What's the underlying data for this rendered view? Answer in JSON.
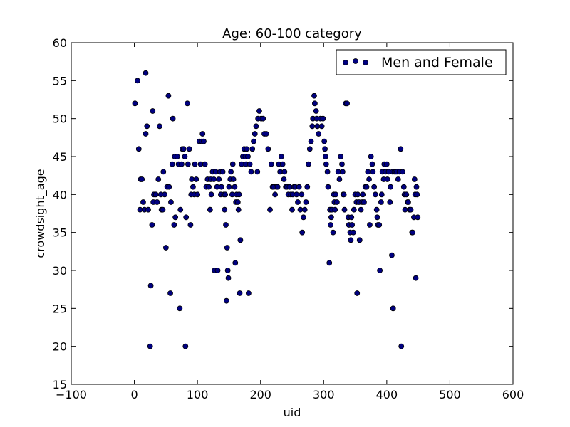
{
  "chart_data": {
    "type": "scatter",
    "title": "Age: 60-100 category",
    "xlabel": "uid",
    "ylabel": "crowdsight_age",
    "xlim": [
      -100,
      600
    ],
    "ylim": [
      15,
      60
    ],
    "xticks": [
      -100,
      0,
      100,
      200,
      300,
      400,
      500,
      600
    ],
    "yticks": [
      15,
      20,
      25,
      30,
      35,
      40,
      45,
      50,
      55,
      60
    ],
    "xtick_labels": [
      "−100",
      "0",
      "100",
      "200",
      "300",
      "400",
      "500",
      "600"
    ],
    "ytick_labels": [
      "15",
      "20",
      "25",
      "30",
      "35",
      "40",
      "45",
      "50",
      "55",
      "60"
    ],
    "grid": false,
    "legend_position": "top-right",
    "marker_color": "#000080",
    "series": [
      {
        "name": "Men and Female",
        "points": [
          [
            1,
            52
          ],
          [
            5,
            55
          ],
          [
            7,
            46
          ],
          [
            9,
            38
          ],
          [
            10,
            42
          ],
          [
            12,
            42
          ],
          [
            14,
            39
          ],
          [
            16,
            38
          ],
          [
            18,
            56
          ],
          [
            18,
            48
          ],
          [
            20,
            49
          ],
          [
            22,
            38
          ],
          [
            25,
            20
          ],
          [
            26,
            28
          ],
          [
            28,
            36
          ],
          [
            29,
            51
          ],
          [
            30,
            39
          ],
          [
            31,
            40
          ],
          [
            34,
            40
          ],
          [
            36,
            39
          ],
          [
            38,
            42
          ],
          [
            40,
            49
          ],
          [
            42,
            40
          ],
          [
            43,
            38
          ],
          [
            45,
            38
          ],
          [
            46,
            43
          ],
          [
            48,
            40
          ],
          [
            50,
            33
          ],
          [
            52,
            41
          ],
          [
            54,
            53
          ],
          [
            55,
            41
          ],
          [
            57,
            27
          ],
          [
            58,
            39
          ],
          [
            60,
            44
          ],
          [
            61,
            50
          ],
          [
            63,
            36
          ],
          [
            64,
            45
          ],
          [
            65,
            37
          ],
          [
            68,
            45
          ],
          [
            70,
            44
          ],
          [
            72,
            25
          ],
          [
            73,
            38
          ],
          [
            75,
            44
          ],
          [
            76,
            46
          ],
          [
            78,
            46
          ],
          [
            80,
            45
          ],
          [
            81,
            20
          ],
          [
            82,
            37
          ],
          [
            84,
            52
          ],
          [
            85,
            44
          ],
          [
            87,
            46
          ],
          [
            89,
            36
          ],
          [
            90,
            40
          ],
          [
            91,
            42
          ],
          [
            93,
            41
          ],
          [
            95,
            40
          ],
          [
            96,
            44
          ],
          [
            98,
            42
          ],
          [
            100,
            40
          ],
          [
            103,
            47
          ],
          [
            105,
            44
          ],
          [
            107,
            47
          ],
          [
            108,
            48
          ],
          [
            110,
            47
          ],
          [
            112,
            44
          ],
          [
            114,
            41
          ],
          [
            116,
            42
          ],
          [
            118,
            41
          ],
          [
            120,
            38
          ],
          [
            121,
            42
          ],
          [
            122,
            40
          ],
          [
            124,
            43
          ],
          [
            126,
            42
          ],
          [
            127,
            30
          ],
          [
            129,
            43
          ],
          [
            131,
            41
          ],
          [
            132,
            30
          ],
          [
            134,
            42
          ],
          [
            136,
            43
          ],
          [
            137,
            40
          ],
          [
            138,
            41
          ],
          [
            140,
            43
          ],
          [
            142,
            40
          ],
          [
            143,
            38
          ],
          [
            144,
            40
          ],
          [
            145,
            36
          ],
          [
            146,
            26
          ],
          [
            147,
            33
          ],
          [
            148,
            30
          ],
          [
            149,
            29
          ],
          [
            150,
            41
          ],
          [
            152,
            42
          ],
          [
            153,
            43
          ],
          [
            155,
            40
          ],
          [
            156,
            44
          ],
          [
            157,
            42
          ],
          [
            159,
            41
          ],
          [
            160,
            31
          ],
          [
            161,
            39
          ],
          [
            162,
            40
          ],
          [
            164,
            39
          ],
          [
            165,
            38
          ],
          [
            166,
            40
          ],
          [
            167,
            27
          ],
          [
            168,
            34
          ],
          [
            170,
            44
          ],
          [
            172,
            45
          ],
          [
            174,
            46
          ],
          [
            176,
            45
          ],
          [
            177,
            44
          ],
          [
            178,
            46
          ],
          [
            180,
            45
          ],
          [
            181,
            27
          ],
          [
            183,
            44
          ],
          [
            185,
            43
          ],
          [
            187,
            46
          ],
          [
            189,
            47
          ],
          [
            191,
            48
          ],
          [
            193,
            49
          ],
          [
            195,
            43
          ],
          [
            196,
            50
          ],
          [
            198,
            51
          ],
          [
            201,
            50
          ],
          [
            204,
            50
          ],
          [
            206,
            48
          ],
          [
            209,
            48
          ],
          [
            212,
            46
          ],
          [
            215,
            38
          ],
          [
            217,
            44
          ],
          [
            219,
            41
          ],
          [
            221,
            41
          ],
          [
            223,
            40
          ],
          [
            225,
            41
          ],
          [
            227,
            41
          ],
          [
            229,
            44
          ],
          [
            231,
            43
          ],
          [
            233,
            45
          ],
          [
            235,
            44
          ],
          [
            237,
            42
          ],
          [
            238,
            43
          ],
          [
            240,
            41
          ],
          [
            242,
            41
          ],
          [
            244,
            40
          ],
          [
            246,
            41
          ],
          [
            248,
            40
          ],
          [
            250,
            38
          ],
          [
            251,
            40
          ],
          [
            253,
            41
          ],
          [
            255,
            41
          ],
          [
            257,
            40
          ],
          [
            259,
            39
          ],
          [
            261,
            41
          ],
          [
            263,
            38
          ],
          [
            265,
            40
          ],
          [
            266,
            35
          ],
          [
            268,
            37
          ],
          [
            270,
            38
          ],
          [
            272,
            39
          ],
          [
            274,
            41
          ],
          [
            276,
            44
          ],
          [
            278,
            46
          ],
          [
            280,
            47
          ],
          [
            282,
            49
          ],
          [
            283,
            50
          ],
          [
            285,
            53
          ],
          [
            286,
            52
          ],
          [
            288,
            51
          ],
          [
            289,
            50
          ],
          [
            290,
            49
          ],
          [
            292,
            48
          ],
          [
            295,
            50
          ],
          [
            297,
            49
          ],
          [
            299,
            50
          ],
          [
            301,
            47
          ],
          [
            302,
            46
          ],
          [
            303,
            45
          ],
          [
            304,
            44
          ],
          [
            306,
            43
          ],
          [
            307,
            41
          ],
          [
            309,
            31
          ],
          [
            310,
            38
          ],
          [
            311,
            36
          ],
          [
            312,
            37
          ],
          [
            313,
            38
          ],
          [
            315,
            35
          ],
          [
            316,
            40
          ],
          [
            317,
            39
          ],
          [
            318,
            38
          ],
          [
            319,
            40
          ],
          [
            321,
            39
          ],
          [
            323,
            43
          ],
          [
            325,
            42
          ],
          [
            327,
            45
          ],
          [
            329,
            44
          ],
          [
            330,
            43
          ],
          [
            331,
            40
          ],
          [
            332,
            40
          ],
          [
            333,
            38
          ],
          [
            335,
            52
          ],
          [
            337,
            52
          ],
          [
            339,
            37
          ],
          [
            340,
            36
          ],
          [
            342,
            35
          ],
          [
            343,
            34
          ],
          [
            344,
            37
          ],
          [
            345,
            36
          ],
          [
            347,
            35
          ],
          [
            348,
            38
          ],
          [
            350,
            40
          ],
          [
            352,
            39
          ],
          [
            353,
            27
          ],
          [
            354,
            40
          ],
          [
            356,
            39
          ],
          [
            357,
            34
          ],
          [
            359,
            38
          ],
          [
            361,
            39
          ],
          [
            362,
            40
          ],
          [
            364,
            39
          ],
          [
            366,
            41
          ],
          [
            368,
            41
          ],
          [
            370,
            43
          ],
          [
            372,
            42
          ],
          [
            373,
            36
          ],
          [
            375,
            45
          ],
          [
            377,
            44
          ],
          [
            378,
            43
          ],
          [
            380,
            41
          ],
          [
            382,
            40
          ],
          [
            384,
            38
          ],
          [
            385,
            37
          ],
          [
            386,
            36
          ],
          [
            388,
            36
          ],
          [
            389,
            30
          ],
          [
            391,
            39
          ],
          [
            392,
            40
          ],
          [
            393,
            43
          ],
          [
            395,
            42
          ],
          [
            396,
            44
          ],
          [
            398,
            43
          ],
          [
            400,
            44
          ],
          [
            401,
            42
          ],
          [
            403,
            43
          ],
          [
            405,
            39
          ],
          [
            406,
            41
          ],
          [
            408,
            32
          ],
          [
            409,
            43
          ],
          [
            410,
            25
          ],
          [
            412,
            43
          ],
          [
            414,
            43
          ],
          [
            416,
            43
          ],
          [
            418,
            42
          ],
          [
            420,
            43
          ],
          [
            422,
            46
          ],
          [
            423,
            20
          ],
          [
            425,
            43
          ],
          [
            427,
            41
          ],
          [
            428,
            40
          ],
          [
            429,
            38
          ],
          [
            431,
            40
          ],
          [
            433,
            39
          ],
          [
            434,
            39
          ],
          [
            436,
            38
          ],
          [
            438,
            38
          ],
          [
            440,
            35
          ],
          [
            441,
            35
          ],
          [
            443,
            37
          ],
          [
            444,
            42
          ],
          [
            445,
            40
          ],
          [
            446,
            29
          ],
          [
            447,
            41
          ],
          [
            448,
            40
          ],
          [
            449,
            37
          ]
        ]
      }
    ]
  }
}
